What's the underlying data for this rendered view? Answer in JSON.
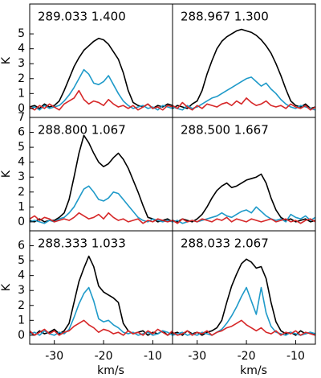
{
  "chart_data": [
    {
      "type": "line",
      "title": "289.033 1.400",
      "ylabel": "K",
      "x": [
        -35,
        -34,
        -33,
        -32,
        -31,
        -30,
        -29,
        -28,
        -27,
        -26,
        -25,
        -24,
        -23,
        -22,
        -21,
        -20,
        -19,
        -18,
        -17,
        -16,
        -15,
        -14,
        -13,
        -12,
        -11,
        -10,
        -9,
        -8,
        -7,
        -6
      ],
      "series": [
        {
          "color": "#000000",
          "values": [
            0.1,
            0.2,
            0,
            0.3,
            0.1,
            0.2,
            0.5,
            1.2,
            2.0,
            2.8,
            3.4,
            3.9,
            4.2,
            4.5,
            4.7,
            4.6,
            4.3,
            3.8,
            3.3,
            2.4,
            1.2,
            0.4,
            0.2,
            0.1,
            0.3,
            0,
            0.2,
            0.1,
            0.3,
            0.2
          ]
        },
        {
          "color": "#1f9ac9",
          "values": [
            0,
            0.1,
            -0.1,
            0.2,
            0,
            0.1,
            0.2,
            0.5,
            0.9,
            1.4,
            2.0,
            2.6,
            2.3,
            1.7,
            1.6,
            1.8,
            2.2,
            1.6,
            1.0,
            0.5,
            0.2,
            0,
            0.1,
            0.2,
            0,
            0.1,
            -0.1,
            0.2,
            0.1,
            0
          ]
        },
        {
          "color": "#d62728",
          "values": [
            0.1,
            -0.1,
            0.2,
            0,
            0.3,
            0.1,
            -0.1,
            0.3,
            0.5,
            0.7,
            1.2,
            0.6,
            0.3,
            0.5,
            0.4,
            0.2,
            0.6,
            0.3,
            0.1,
            0.2,
            0,
            0.2,
            -0.1,
            0.1,
            0.3,
            0,
            0.1,
            -0.1,
            0.2,
            0.1
          ]
        }
      ],
      "xlim": [
        -35,
        -6
      ],
      "ylim": [
        -0.6,
        7
      ],
      "yticks": [
        0,
        1,
        2,
        3,
        4,
        5
      ]
    },
    {
      "type": "line",
      "title": "288.967 1.300",
      "x": [
        -35,
        -34,
        -33,
        -32,
        -31,
        -30,
        -29,
        -28,
        -27,
        -26,
        -25,
        -24,
        -23,
        -22,
        -21,
        -20,
        -19,
        -18,
        -17,
        -16,
        -15,
        -14,
        -13,
        -12,
        -11,
        -10,
        -9,
        -8,
        -7,
        -6
      ],
      "series": [
        {
          "color": "#000000",
          "values": [
            0,
            0.2,
            0.1,
            0,
            0.3,
            0.5,
            1.2,
            2.3,
            3.2,
            4.0,
            4.5,
            4.8,
            5.0,
            5.2,
            5.3,
            5.2,
            5.1,
            4.9,
            4.6,
            4.2,
            3.7,
            3.0,
            2.2,
            1.3,
            0.5,
            0.2,
            0.1,
            0.3,
            0,
            0.1
          ]
        },
        {
          "color": "#1f9ac9",
          "values": [
            0.1,
            0,
            -0.1,
            0.2,
            0,
            0.1,
            0.3,
            0.5,
            0.7,
            0.8,
            1.0,
            1.2,
            1.4,
            1.6,
            1.8,
            2.0,
            2.1,
            1.8,
            1.5,
            1.7,
            1.3,
            1.0,
            0.6,
            0.3,
            0.1,
            0,
            0.2,
            0.1,
            0,
            -0.1
          ]
        },
        {
          "color": "#d62728",
          "values": [
            0.2,
            0,
            0.4,
            0.1,
            -0.1,
            0.2,
            0,
            0.3,
            0.2,
            0.1,
            0.3,
            0.4,
            0.2,
            0.5,
            0.3,
            0.7,
            0.4,
            0.2,
            0.3,
            0.5,
            0.2,
            0.1,
            0.2,
            0,
            0.3,
            0.1,
            0,
            0.2,
            -0.1,
            0.1
          ]
        }
      ],
      "xlim": [
        -35,
        -6
      ],
      "ylim": [
        -0.6,
        7
      ]
    },
    {
      "type": "line",
      "title": "288.800 1.067",
      "ylabel": "K",
      "x": [
        -35,
        -34,
        -33,
        -32,
        -31,
        -30,
        -29,
        -28,
        -27,
        -26,
        -25,
        -24,
        -23,
        -22,
        -21,
        -20,
        -19,
        -18,
        -17,
        -16,
        -15,
        -14,
        -13,
        -12,
        -11,
        -10,
        -9,
        -8,
        -7,
        -6
      ],
      "series": [
        {
          "color": "#000000",
          "values": [
            0.1,
            0,
            0.2,
            0,
            0.1,
            0.1,
            0.3,
            0.6,
            1.5,
            3.0,
            4.6,
            5.8,
            5.3,
            4.6,
            4.0,
            3.7,
            3.9,
            4.3,
            4.6,
            4.2,
            3.6,
            2.8,
            2.0,
            1.1,
            0.3,
            0.2,
            0,
            0.1,
            0.2,
            0
          ]
        },
        {
          "color": "#1f9ac9",
          "values": [
            0,
            0.1,
            0,
            -0.1,
            0.1,
            0,
            0.2,
            0.3,
            0.6,
            1.0,
            1.6,
            2.2,
            2.4,
            2.0,
            1.5,
            1.4,
            1.6,
            2.0,
            1.9,
            1.5,
            1.1,
            0.7,
            0.3,
            0.1,
            0,
            0.2,
            0.1,
            0,
            0.1,
            0
          ]
        },
        {
          "color": "#d62728",
          "values": [
            0.2,
            0.4,
            0.1,
            0.3,
            0.2,
            0,
            0.1,
            0.2,
            0.1,
            0.3,
            0.6,
            0.4,
            0.2,
            0.3,
            0.5,
            0.2,
            0.6,
            0.3,
            0.1,
            0.2,
            0,
            0.1,
            0.2,
            -0.1,
            0.1,
            0,
            0.2,
            0.1,
            0,
            0.1
          ]
        }
      ],
      "xlim": [
        -35,
        -6
      ],
      "ylim": [
        -0.6,
        7
      ],
      "yticks": [
        0,
        1,
        2,
        3,
        4,
        5,
        6,
        7
      ]
    },
    {
      "type": "line",
      "title": "288.500 1.667",
      "x": [
        -35,
        -34,
        -33,
        -32,
        -31,
        -30,
        -29,
        -28,
        -27,
        -26,
        -25,
        -24,
        -23,
        -22,
        -21,
        -20,
        -19,
        -18,
        -17,
        -16,
        -15,
        -14,
        -13,
        -12,
        -11,
        -10,
        -9,
        -8,
        -7,
        -6
      ],
      "series": [
        {
          "color": "#000000",
          "values": [
            0.1,
            0,
            0.2,
            0.1,
            0,
            0.2,
            0.5,
            1.0,
            1.6,
            2.1,
            2.4,
            2.6,
            2.3,
            2.4,
            2.6,
            2.8,
            2.9,
            3.0,
            3.2,
            2.6,
            1.6,
            0.8,
            0.3,
            0.1,
            0.2,
            0,
            0.1,
            0.2,
            0,
            0.1
          ]
        },
        {
          "color": "#1f9ac9",
          "values": [
            0,
            0.1,
            -0.1,
            0,
            0.1,
            0,
            0.1,
            0.2,
            0.3,
            0.4,
            0.6,
            0.4,
            0.3,
            0.5,
            0.7,
            0.8,
            0.6,
            1.0,
            0.7,
            0.4,
            0.2,
            0.1,
            0.2,
            0,
            0.5,
            0.3,
            0.2,
            0.4,
            0.1,
            0.3
          ]
        },
        {
          "color": "#d62728",
          "values": [
            0.1,
            -0.1,
            0.2,
            0,
            0.1,
            0,
            0.2,
            0.1,
            0,
            0.2,
            0.1,
            0.3,
            0,
            0.2,
            0.1,
            0,
            0.2,
            0.1,
            0,
            0.1,
            0.2,
            0,
            0.1,
            0.2,
            0,
            0.1,
            -0.1,
            0.1,
            0.2,
            0
          ]
        }
      ],
      "xlim": [
        -35,
        -6
      ],
      "ylim": [
        -0.6,
        7
      ]
    },
    {
      "type": "line",
      "title": "288.333 1.033",
      "ylabel": "K",
      "xlabel": "km/s",
      "x": [
        -35,
        -34,
        -33,
        -32,
        -31,
        -30,
        -29,
        -28,
        -27,
        -26,
        -25,
        -24,
        -23,
        -22,
        -21,
        -20,
        -19,
        -18,
        -17,
        -16,
        -15,
        -14,
        -13,
        -12,
        -11,
        -10,
        -9,
        -8,
        -7,
        -6
      ],
      "series": [
        {
          "color": "#000000",
          "values": [
            0.2,
            0,
            0.3,
            0.1,
            0.2,
            0.4,
            0.1,
            0.3,
            0.8,
            2.2,
            3.6,
            4.5,
            5.3,
            4.6,
            3.3,
            2.9,
            2.7,
            2.5,
            2.2,
            0.8,
            0.3,
            0.1,
            0.2,
            0.3,
            0,
            0.2,
            0.1,
            0.3,
            0,
            0.2
          ]
        },
        {
          "color": "#1f9ac9",
          "values": [
            0.1,
            0.2,
            0,
            0.3,
            0.1,
            0,
            0.2,
            0.1,
            0.4,
            1.2,
            2.1,
            2.8,
            3.2,
            2.3,
            1.1,
            0.9,
            1.0,
            0.7,
            0.5,
            0.2,
            0.1,
            0.2,
            0,
            0.1,
            0.2,
            0,
            0.1,
            0.3,
            0.2,
            0
          ]
        },
        {
          "color": "#d62728",
          "values": [
            0.3,
            0,
            0.2,
            0.4,
            0.1,
            0.3,
            0,
            0.2,
            0.3,
            0.6,
            0.8,
            1.0,
            0.7,
            0.5,
            0.2,
            0.4,
            0.3,
            0.1,
            0.2,
            0,
            0.3,
            0.1,
            0.2,
            0,
            0.3,
            0.1,
            0.4,
            0.2,
            0,
            0.3
          ]
        }
      ],
      "xlim": [
        -35,
        -6
      ],
      "ylim": [
        -0.6,
        7
      ],
      "xticks": [
        -30,
        -20,
        -10
      ],
      "yticks": [
        0,
        1,
        2,
        3,
        4,
        5,
        6
      ]
    },
    {
      "type": "line",
      "title": "288.033 2.067",
      "xlabel": "km/s",
      "x": [
        -35,
        -34,
        -33,
        -32,
        -31,
        -30,
        -29,
        -28,
        -27,
        -26,
        -25,
        -24,
        -23,
        -22,
        -21,
        -20,
        -19,
        -18,
        -17,
        -16,
        -15,
        -14,
        -13,
        -12,
        -11,
        -10,
        -9,
        -8,
        -7,
        -6
      ],
      "series": [
        {
          "color": "#000000",
          "values": [
            0.1,
            0.2,
            0,
            0.3,
            0.1,
            0.2,
            0,
            0.2,
            0.3,
            0.5,
            1.0,
            2.2,
            3.3,
            4.1,
            4.8,
            5.1,
            4.9,
            4.5,
            4.6,
            3.8,
            2.2,
            0.9,
            0.3,
            0.1,
            0.2,
            0,
            0.3,
            0.1,
            0.2,
            0
          ]
        },
        {
          "color": "#1f9ac9",
          "values": [
            0,
            0.1,
            0.2,
            0,
            0.1,
            0,
            0.2,
            0.1,
            0,
            0.2,
            0.4,
            0.8,
            1.3,
            1.9,
            2.6,
            3.2,
            2.3,
            1.4,
            3.2,
            1.5,
            0.6,
            0.2,
            0.1,
            0,
            0.2,
            0.1,
            0,
            0.1,
            0.2,
            0.1
          ]
        },
        {
          "color": "#d62728",
          "values": [
            0.2,
            0,
            0.1,
            0.3,
            0,
            0.2,
            0.1,
            0.3,
            0,
            0.2,
            0.3,
            0.5,
            0.6,
            0.8,
            1.0,
            0.7,
            0.5,
            0.3,
            0.5,
            0.2,
            0.1,
            0.3,
            0,
            0.2,
            0.1,
            0.3,
            0,
            0.2,
            0.1,
            0
          ]
        }
      ],
      "xlim": [
        -35,
        -6
      ],
      "ylim": [
        -0.6,
        7
      ],
      "xticks": [
        -30,
        -20,
        -10
      ]
    }
  ]
}
